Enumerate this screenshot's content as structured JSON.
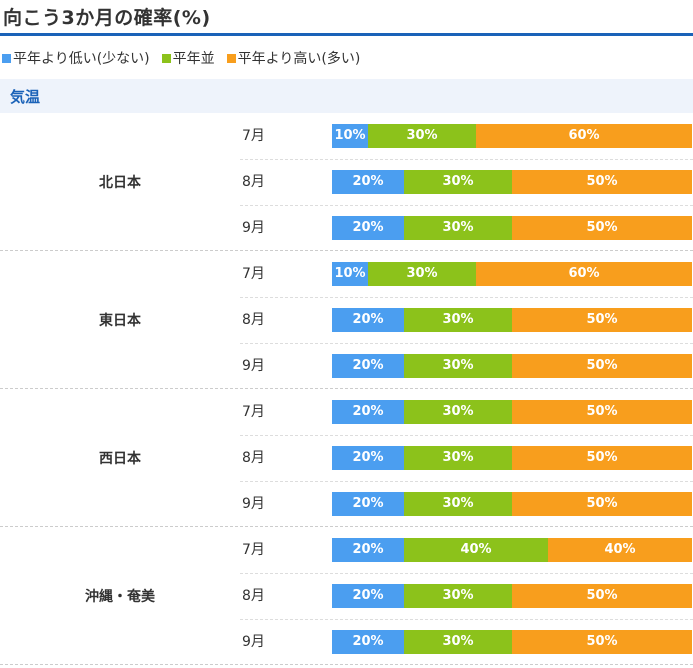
{
  "title": "向こう3か月の確率(%)",
  "legend": [
    {
      "label": "平年より低い(少ない)",
      "color": "#4b9ef0"
    },
    {
      "label": "平年並",
      "color": "#8cc21b"
    },
    {
      "label": "平年より高い(多い)",
      "color": "#f89e1d"
    }
  ],
  "section": {
    "label": "気温"
  },
  "chart_data": {
    "type": "bar",
    "stacked": true,
    "orientation": "horizontal",
    "series": [
      {
        "name": "平年より低い(少ない)",
        "color": "#4b9ef0"
      },
      {
        "name": "平年並",
        "color": "#8cc21b"
      },
      {
        "name": "平年より高い(多い)",
        "color": "#f89e1d"
      }
    ],
    "regions": [
      {
        "name": "北日本",
        "months": [
          {
            "month": "7月",
            "values": [
              10,
              30,
              60
            ]
          },
          {
            "month": "8月",
            "values": [
              20,
              30,
              50
            ]
          },
          {
            "month": "9月",
            "values": [
              20,
              30,
              50
            ]
          }
        ]
      },
      {
        "name": "東日本",
        "months": [
          {
            "month": "7月",
            "values": [
              10,
              30,
              60
            ]
          },
          {
            "month": "8月",
            "values": [
              20,
              30,
              50
            ]
          },
          {
            "month": "9月",
            "values": [
              20,
              30,
              50
            ]
          }
        ]
      },
      {
        "name": "西日本",
        "months": [
          {
            "month": "7月",
            "values": [
              20,
              30,
              50
            ]
          },
          {
            "month": "8月",
            "values": [
              20,
              30,
              50
            ]
          },
          {
            "month": "9月",
            "values": [
              20,
              30,
              50
            ]
          }
        ]
      },
      {
        "name": "沖縄・奄美",
        "months": [
          {
            "month": "7月",
            "values": [
              20,
              40,
              40
            ]
          },
          {
            "month": "8月",
            "values": [
              20,
              30,
              50
            ]
          },
          {
            "month": "9月",
            "values": [
              20,
              30,
              50
            ]
          }
        ]
      }
    ]
  }
}
